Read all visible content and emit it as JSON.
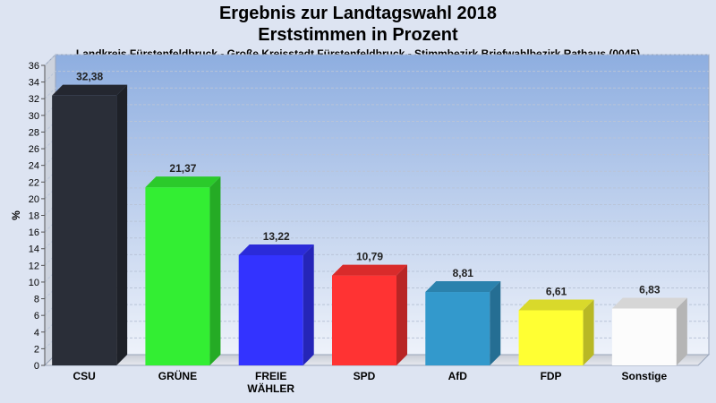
{
  "chart_data": {
    "type": "bar",
    "title": "Ergebnis zur Landtagswahl 2018",
    "subtitle": "Erststimmen in Prozent",
    "caption": "Landkreis Fürstenfeldbruck - Große Kreisstadt Fürstenfeldbruck - Stimmbezirk Briefwahlbezirk Rathaus (0045)",
    "ylabel": "%",
    "xlabel": "",
    "ylim": [
      0,
      36
    ],
    "yticks": [
      "0",
      "2",
      "4",
      "6",
      "8",
      "10",
      "12",
      "14",
      "16",
      "18",
      "20",
      "22",
      "24",
      "26",
      "28",
      "30",
      "32",
      "34",
      "36"
    ],
    "categories": [
      {
        "name": "CSU",
        "lines": [
          "CSU"
        ]
      },
      {
        "name": "GRÜNE",
        "lines": [
          "GRÜNE"
        ]
      },
      {
        "name": "FREIE WÄHLER",
        "lines": [
          "FREIE",
          "WÄHLER"
        ]
      },
      {
        "name": "SPD",
        "lines": [
          "SPD"
        ]
      },
      {
        "name": "AfD",
        "lines": [
          "AfD"
        ]
      },
      {
        "name": "FDP",
        "lines": [
          "FDP"
        ]
      },
      {
        "name": "Sonstige",
        "lines": [
          "Sonstige"
        ]
      }
    ],
    "values": [
      32.38,
      21.37,
      13.22,
      10.79,
      8.81,
      6.61,
      6.83
    ],
    "value_labels": [
      "32,38",
      "21,37",
      "13,22",
      "10,79",
      "8,81",
      "6,61",
      "6,83"
    ],
    "colors": [
      "#2a2e38",
      "#33ee33",
      "#3333ff",
      "#ff3333",
      "#3399cc",
      "#ffff33",
      "#fcfcfc"
    ],
    "grid": true,
    "legend": "none"
  }
}
